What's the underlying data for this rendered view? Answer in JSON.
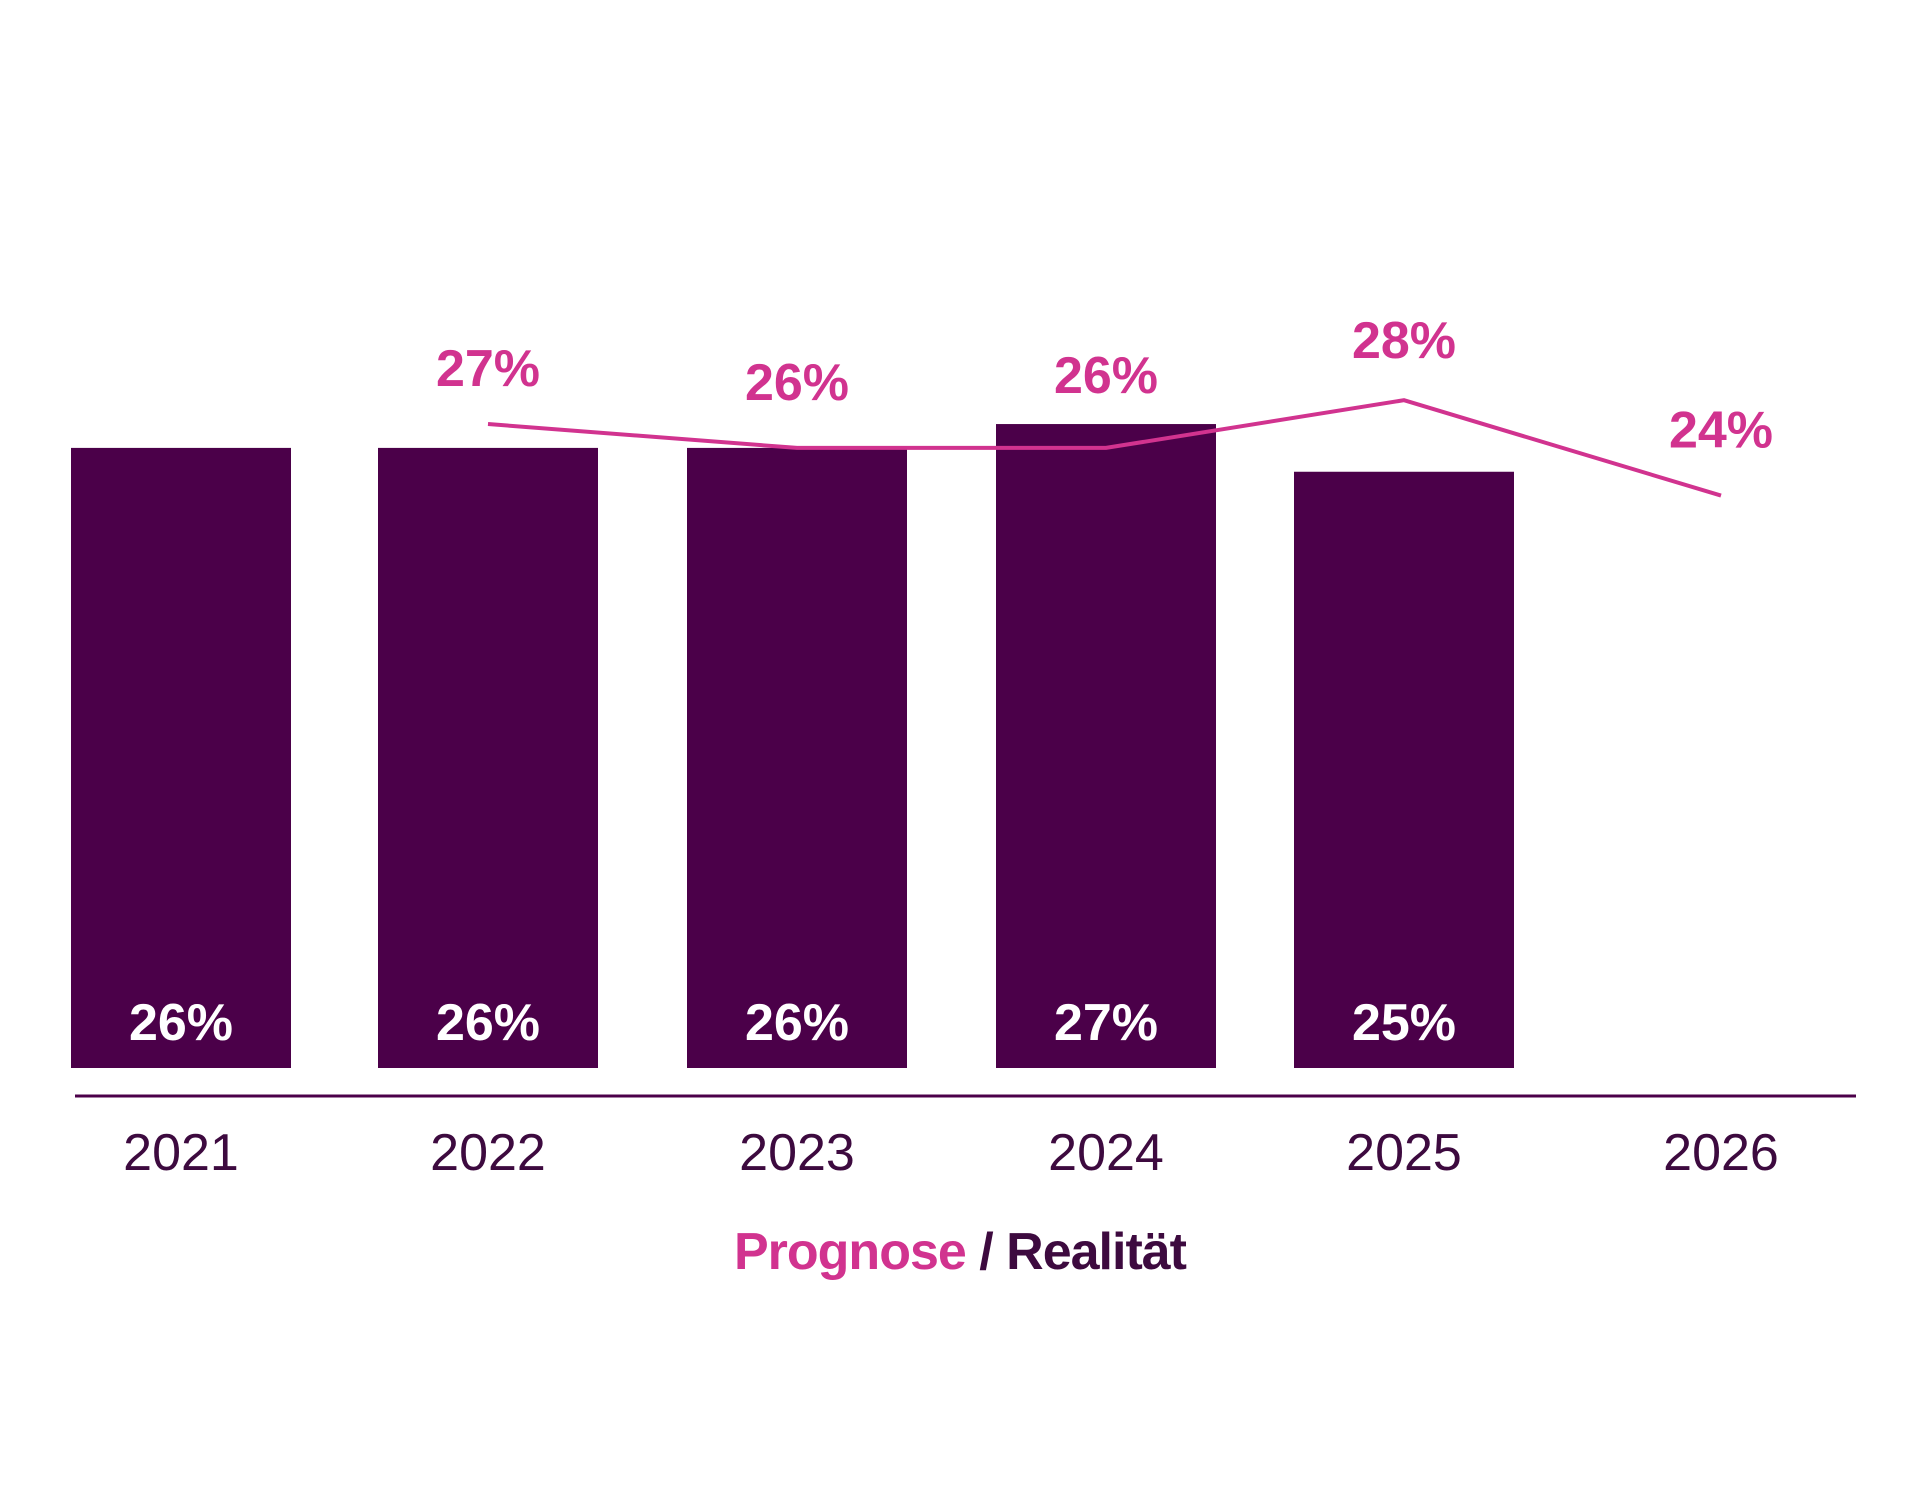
{
  "chart_data": {
    "type": "bar",
    "categories": [
      "2021",
      "2022",
      "2023",
      "2024",
      "2025",
      "2026"
    ],
    "series": [
      {
        "name": "Realität",
        "type": "bar",
        "values": [
          26,
          26,
          26,
          27,
          25,
          null
        ],
        "labels": [
          "26%",
          "26%",
          "26%",
          "27%",
          "25%",
          ""
        ],
        "color": "#4b0049"
      },
      {
        "name": "Prognose",
        "type": "line",
        "values": [
          null,
          27,
          26,
          26,
          28,
          24
        ],
        "labels": [
          "",
          "27%",
          "26%",
          "26%",
          "28%",
          "24%"
        ],
        "color": "#d1338f"
      }
    ],
    "ylim": [
      0,
      28
    ],
    "grid": false,
    "legend": {
      "position": "bottom",
      "prognose": "Prognose",
      "separator": " / ",
      "realitaet": "Realität"
    }
  },
  "colors": {
    "bar": "#4b0049",
    "line": "#d1338f",
    "axis": "#4b0049",
    "text": "#3d0a3f"
  }
}
